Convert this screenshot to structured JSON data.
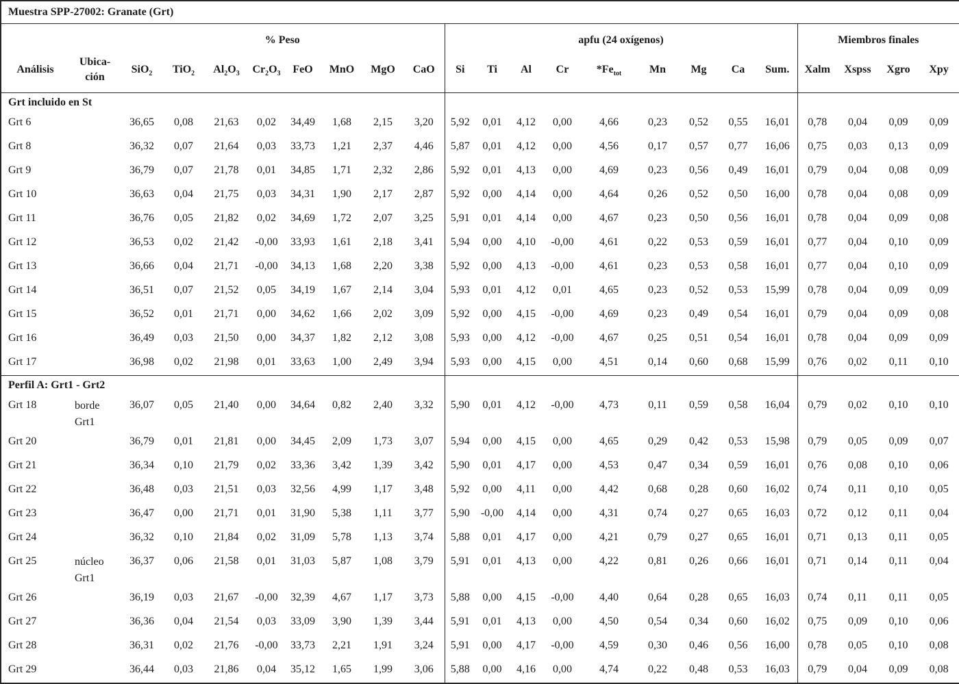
{
  "table": {
    "title": "Muestra SPP-27002: Granate (Grt)",
    "groups": {
      "peso": "% Peso",
      "apfu": "apfu (24 oxígenos)",
      "miembros": "Miembros finales"
    },
    "headers": {
      "analisis": "Análisis",
      "ubicacion": [
        "Ubica-",
        "ción"
      ],
      "peso": [
        {
          "segs": [
            {
              "t": "SiO"
            },
            {
              "s": "2"
            }
          ]
        },
        {
          "segs": [
            {
              "t": "TiO"
            },
            {
              "s": "2"
            }
          ]
        },
        {
          "segs": [
            {
              "t": "Al"
            },
            {
              "s": "2"
            },
            {
              "t": "O"
            },
            {
              "s": "3"
            }
          ]
        },
        {
          "segs": [
            {
              "t": "Cr"
            },
            {
              "s": "2"
            },
            {
              "t": "O"
            },
            {
              "s": "3"
            }
          ]
        },
        {
          "segs": [
            {
              "t": "FeO"
            }
          ]
        },
        {
          "segs": [
            {
              "t": "MnO"
            }
          ]
        },
        {
          "segs": [
            {
              "t": "MgO"
            }
          ]
        },
        {
          "segs": [
            {
              "t": "CaO"
            }
          ]
        }
      ],
      "apfu": [
        {
          "segs": [
            {
              "t": "Si"
            }
          ]
        },
        {
          "segs": [
            {
              "t": "Ti"
            }
          ]
        },
        {
          "segs": [
            {
              "t": "Al"
            }
          ]
        },
        {
          "segs": [
            {
              "t": "Cr"
            }
          ]
        },
        {
          "segs": [
            {
              "t": "*Fe"
            },
            {
              "s": "tot"
            }
          ]
        },
        {
          "segs": [
            {
              "t": "Mn"
            }
          ]
        },
        {
          "segs": [
            {
              "t": "Mg"
            }
          ]
        },
        {
          "segs": [
            {
              "t": "Ca"
            }
          ]
        },
        {
          "segs": [
            {
              "t": "Sum."
            }
          ]
        }
      ],
      "miembros": [
        {
          "segs": [
            {
              "t": "Xalm"
            }
          ]
        },
        {
          "segs": [
            {
              "t": "Xspss"
            }
          ]
        },
        {
          "segs": [
            {
              "t": "Xgro"
            }
          ]
        },
        {
          "segs": [
            {
              "t": "Xpy"
            }
          ]
        }
      ]
    },
    "sections": [
      {
        "header": "Grt incluido en St",
        "rows": [
          {
            "id": "Grt 6",
            "loc": [],
            "v": [
              "36,65",
              "0,08",
              "21,63",
              "0,02",
              "34,49",
              "1,68",
              "2,15",
              "3,20",
              "5,92",
              "0,01",
              "4,12",
              "0,00",
              "4,66",
              "0,23",
              "0,52",
              "0,55",
              "16,01",
              "0,78",
              "0,04",
              "0,09",
              "0,09"
            ]
          },
          {
            "id": "Grt 8",
            "loc": [],
            "v": [
              "36,32",
              "0,07",
              "21,64",
              "0,03",
              "33,73",
              "1,21",
              "2,37",
              "4,46",
              "5,87",
              "0,01",
              "4,12",
              "0,00",
              "4,56",
              "0,17",
              "0,57",
              "0,77",
              "16,06",
              "0,75",
              "0,03",
              "0,13",
              "0,09"
            ]
          },
          {
            "id": "Grt 9",
            "loc": [],
            "v": [
              "36,79",
              "0,07",
              "21,78",
              "0,01",
              "34,85",
              "1,71",
              "2,32",
              "2,86",
              "5,92",
              "0,01",
              "4,13",
              "0,00",
              "4,69",
              "0,23",
              "0,56",
              "0,49",
              "16,01",
              "0,79",
              "0,04",
              "0,08",
              "0,09"
            ]
          },
          {
            "id": "Grt 10",
            "loc": [],
            "v": [
              "36,63",
              "0,04",
              "21,75",
              "0,03",
              "34,31",
              "1,90",
              "2,17",
              "2,87",
              "5,92",
              "0,00",
              "4,14",
              "0,00",
              "4,64",
              "0,26",
              "0,52",
              "0,50",
              "16,00",
              "0,78",
              "0,04",
              "0,08",
              "0,09"
            ]
          },
          {
            "id": "Grt 11",
            "loc": [],
            "v": [
              "36,76",
              "0,05",
              "21,82",
              "0,02",
              "34,69",
              "1,72",
              "2,07",
              "3,25",
              "5,91",
              "0,01",
              "4,14",
              "0,00",
              "4,67",
              "0,23",
              "0,50",
              "0,56",
              "16,01",
              "0,78",
              "0,04",
              "0,09",
              "0,08"
            ]
          },
          {
            "id": "Grt 12",
            "loc": [],
            "v": [
              "36,53",
              "0,02",
              "21,42",
              "-0,00",
              "33,93",
              "1,61",
              "2,18",
              "3,41",
              "5,94",
              "0,00",
              "4,10",
              "-0,00",
              "4,61",
              "0,22",
              "0,53",
              "0,59",
              "16,01",
              "0,77",
              "0,04",
              "0,10",
              "0,09"
            ]
          },
          {
            "id": "Grt 13",
            "loc": [],
            "v": [
              "36,66",
              "0,04",
              "21,71",
              "-0,00",
              "34,13",
              "1,68",
              "2,20",
              "3,38",
              "5,92",
              "0,00",
              "4,13",
              "-0,00",
              "4,61",
              "0,23",
              "0,53",
              "0,58",
              "16,01",
              "0,77",
              "0,04",
              "0,10",
              "0,09"
            ]
          },
          {
            "id": "Grt 14",
            "loc": [],
            "v": [
              "36,51",
              "0,07",
              "21,52",
              "0,05",
              "34,19",
              "1,67",
              "2,14",
              "3,04",
              "5,93",
              "0,01",
              "4,12",
              "0,01",
              "4,65",
              "0,23",
              "0,52",
              "0,53",
              "15,99",
              "0,78",
              "0,04",
              "0,09",
              "0,09"
            ]
          },
          {
            "id": "Grt 15",
            "loc": [],
            "v": [
              "36,52",
              "0,01",
              "21,71",
              "0,00",
              "34,62",
              "1,66",
              "2,02",
              "3,09",
              "5,92",
              "0,00",
              "4,15",
              "-0,00",
              "4,69",
              "0,23",
              "0,49",
              "0,54",
              "16,01",
              "0,79",
              "0,04",
              "0,09",
              "0,08"
            ]
          },
          {
            "id": "Grt 16",
            "loc": [],
            "v": [
              "36,49",
              "0,03",
              "21,50",
              "0,00",
              "34,37",
              "1,82",
              "2,12",
              "3,08",
              "5,93",
              "0,00",
              "4,12",
              "-0,00",
              "4,67",
              "0,25",
              "0,51",
              "0,54",
              "16,01",
              "0,78",
              "0,04",
              "0,09",
              "0,09"
            ]
          },
          {
            "id": "Grt 17",
            "loc": [],
            "v": [
              "36,98",
              "0,02",
              "21,98",
              "0,01",
              "33,63",
              "1,00",
              "2,49",
              "3,94",
              "5,93",
              "0,00",
              "4,15",
              "0,00",
              "4,51",
              "0,14",
              "0,60",
              "0,68",
              "15,99",
              "0,76",
              "0,02",
              "0,11",
              "0,10"
            ]
          }
        ]
      },
      {
        "header": "Perfil A: Grt1 - Grt2",
        "rows": [
          {
            "id": "Grt 18",
            "loc": [
              "borde",
              "Grt1"
            ],
            "v": [
              "36,07",
              "0,05",
              "21,40",
              "0,00",
              "34,64",
              "0,82",
              "2,40",
              "3,32",
              "5,90",
              "0,01",
              "4,12",
              "-0,00",
              "4,73",
              "0,11",
              "0,59",
              "0,58",
              "16,04",
              "0,79",
              "0,02",
              "0,10",
              "0,10"
            ]
          },
          {
            "id": "Grt 20",
            "loc": [],
            "v": [
              "36,79",
              "0,01",
              "21,81",
              "0,00",
              "34,45",
              "2,09",
              "1,73",
              "3,07",
              "5,94",
              "0,00",
              "4,15",
              "0,00",
              "4,65",
              "0,29",
              "0,42",
              "0,53",
              "15,98",
              "0,79",
              "0,05",
              "0,09",
              "0,07"
            ]
          },
          {
            "id": "Grt 21",
            "loc": [],
            "v": [
              "36,34",
              "0,10",
              "21,79",
              "0,02",
              "33,36",
              "3,42",
              "1,39",
              "3,42",
              "5,90",
              "0,01",
              "4,17",
              "0,00",
              "4,53",
              "0,47",
              "0,34",
              "0,59",
              "16,01",
              "0,76",
              "0,08",
              "0,10",
              "0,06"
            ]
          },
          {
            "id": "Grt 22",
            "loc": [],
            "v": [
              "36,48",
              "0,03",
              "21,51",
              "0,03",
              "32,56",
              "4,99",
              "1,17",
              "3,48",
              "5,92",
              "0,00",
              "4,11",
              "0,00",
              "4,42",
              "0,68",
              "0,28",
              "0,60",
              "16,02",
              "0,74",
              "0,11",
              "0,10",
              "0,05"
            ]
          },
          {
            "id": "Grt 23",
            "loc": [],
            "v": [
              "36,47",
              "0,00",
              "21,71",
              "0,01",
              "31,90",
              "5,38",
              "1,11",
              "3,77",
              "5,90",
              "-0,00",
              "4,14",
              "0,00",
              "4,31",
              "0,74",
              "0,27",
              "0,65",
              "16,03",
              "0,72",
              "0,12",
              "0,11",
              "0,04"
            ]
          },
          {
            "id": "Grt 24",
            "loc": [],
            "v": [
              "36,32",
              "0,10",
              "21,84",
              "0,02",
              "31,09",
              "5,78",
              "1,13",
              "3,74",
              "5,88",
              "0,01",
              "4,17",
              "0,00",
              "4,21",
              "0,79",
              "0,27",
              "0,65",
              "16,01",
              "0,71",
              "0,13",
              "0,11",
              "0,05"
            ]
          },
          {
            "id": "Grt 25",
            "loc": [
              "núcleo",
              "Grt1"
            ],
            "v": [
              "36,37",
              "0,06",
              "21,58",
              "0,01",
              "31,03",
              "5,87",
              "1,08",
              "3,79",
              "5,91",
              "0,01",
              "4,13",
              "0,00",
              "4,22",
              "0,81",
              "0,26",
              "0,66",
              "16,01",
              "0,71",
              "0,14",
              "0,11",
              "0,04"
            ]
          },
          {
            "id": "Grt 26",
            "loc": [],
            "v": [
              "36,19",
              "0,03",
              "21,67",
              "-0,00",
              "32,39",
              "4,67",
              "1,17",
              "3,73",
              "5,88",
              "0,00",
              "4,15",
              "-0,00",
              "4,40",
              "0,64",
              "0,28",
              "0,65",
              "16,03",
              "0,74",
              "0,11",
              "0,11",
              "0,05"
            ]
          },
          {
            "id": "Grt 27",
            "loc": [],
            "v": [
              "36,36",
              "0,04",
              "21,54",
              "0,03",
              "33,09",
              "3,90",
              "1,39",
              "3,44",
              "5,91",
              "0,01",
              "4,13",
              "0,00",
              "4,50",
              "0,54",
              "0,34",
              "0,60",
              "16,02",
              "0,75",
              "0,09",
              "0,10",
              "0,06"
            ]
          },
          {
            "id": "Grt 28",
            "loc": [],
            "v": [
              "36,31",
              "0,02",
              "21,76",
              "-0,00",
              "33,73",
              "2,21",
              "1,91",
              "3,24",
              "5,91",
              "0,00",
              "4,17",
              "-0,00",
              "4,59",
              "0,30",
              "0,46",
              "0,56",
              "16,00",
              "0,78",
              "0,05",
              "0,10",
              "0,08"
            ]
          },
          {
            "id": "Grt 29",
            "loc": [],
            "v": [
              "36,44",
              "0,03",
              "21,86",
              "0,04",
              "35,12",
              "1,65",
              "1,99",
              "3,06",
              "5,88",
              "0,00",
              "4,16",
              "0,00",
              "4,74",
              "0,22",
              "0,48",
              "0,53",
              "16,03",
              "0,79",
              "0,04",
              "0,09",
              "0,08"
            ]
          }
        ]
      }
    ]
  }
}
